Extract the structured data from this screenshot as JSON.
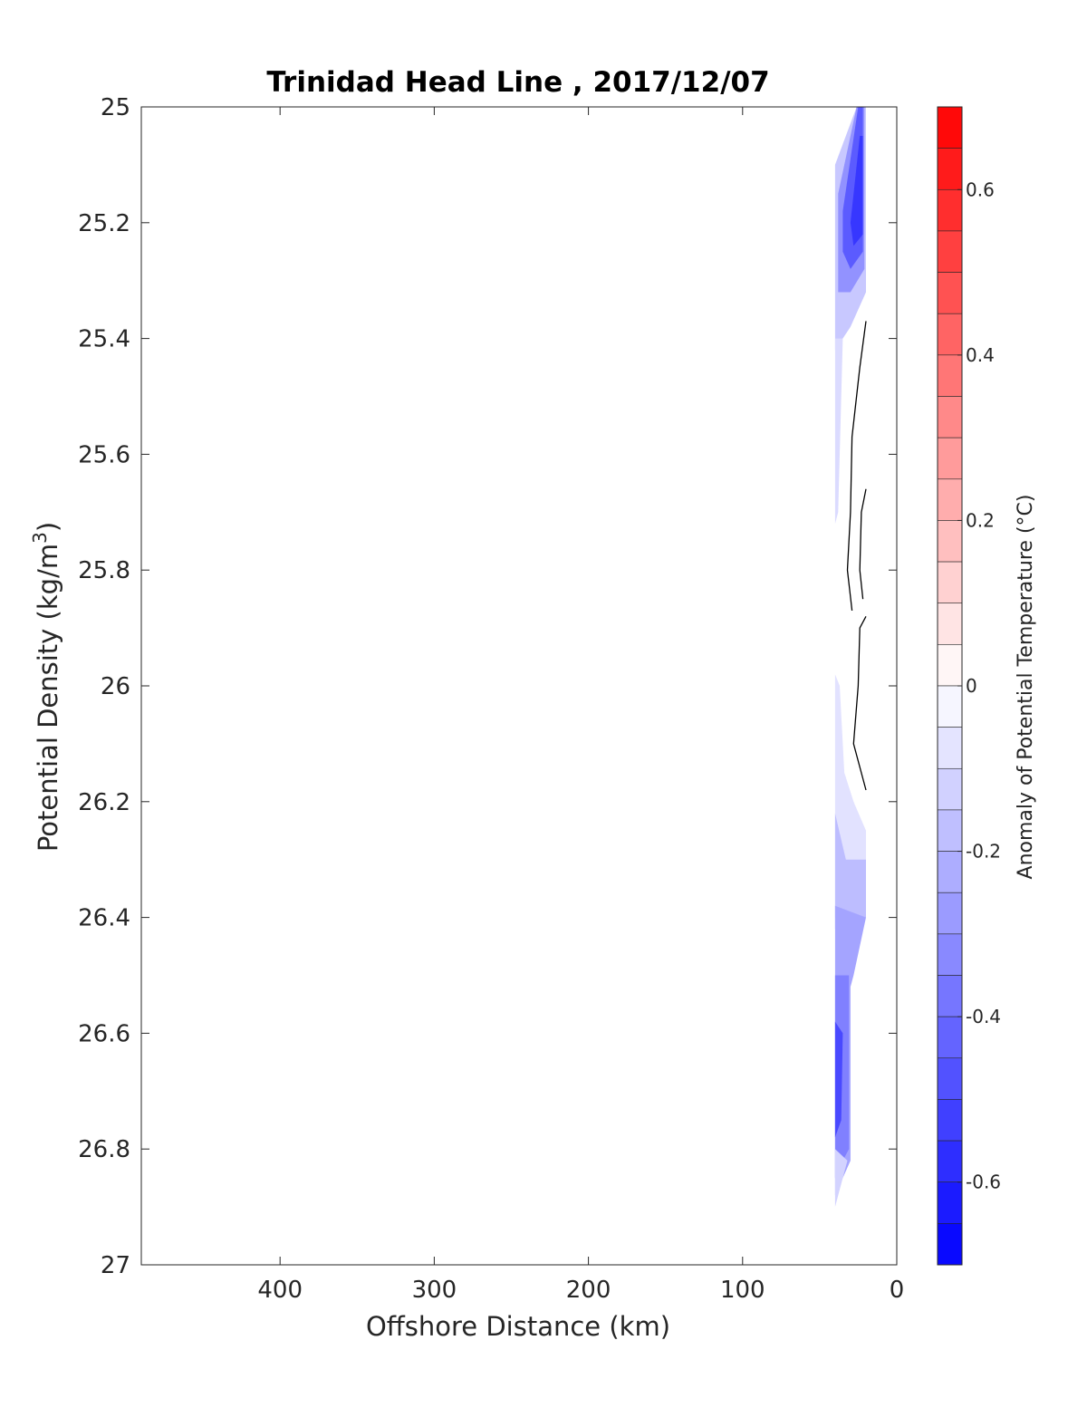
{
  "chart_data": {
    "type": "contour",
    "title": "Trinidad Head Line , 2017/12/07",
    "xlabel": "Offshore Distance (km)",
    "ylabel": "Potential Density (kg/m",
    "ylabel_superscript": "3",
    "ylabel_suffix": ")",
    "colorbar_label": "Anomaly of Potential Temperature (°C)",
    "x_axis": {
      "reversed": true,
      "xlim": [
        490,
        0
      ],
      "ticks": [
        400,
        300,
        200,
        100,
        0
      ],
      "tick_labels": [
        "400",
        "300",
        "200",
        "100",
        "0"
      ]
    },
    "y_axis": {
      "reversed": true,
      "ylim": [
        25,
        27
      ],
      "ticks": [
        25,
        25.2,
        25.4,
        25.6,
        25.8,
        26,
        26.2,
        26.4,
        26.6,
        26.8,
        27
      ],
      "tick_labels": [
        "25",
        "25.2",
        "25.4",
        "25.6",
        "25.8",
        "26",
        "26.2",
        "26.4",
        "26.6",
        "26.8",
        "27"
      ]
    },
    "colorbar": {
      "clim": [
        -0.7,
        0.7
      ],
      "step": 0.05,
      "ticks": [
        0.6,
        0.4,
        0.2,
        0,
        -0.2,
        -0.4,
        -0.6
      ],
      "tick_labels": [
        "0.6",
        "0.4",
        "0.2",
        "0",
        "-0.2",
        "-0.4",
        "-0.6"
      ],
      "color_min": "#0000ff",
      "color_mid": "#ffffff",
      "color_max": "#ff0000"
    },
    "regions": [
      {
        "anomaly": -0.15,
        "points": [
          [
            40,
            25.1
          ],
          [
            26,
            25.0
          ],
          [
            20,
            25.0
          ],
          [
            20,
            25.32
          ],
          [
            30,
            25.38
          ],
          [
            40,
            25.42
          ]
        ]
      },
      {
        "anomaly": -0.3,
        "points": [
          [
            38,
            25.15
          ],
          [
            26,
            25.0
          ],
          [
            21,
            25.0
          ],
          [
            21,
            25.28
          ],
          [
            30,
            25.32
          ],
          [
            38,
            25.32
          ]
        ]
      },
      {
        "anomaly": -0.45,
        "points": [
          [
            35,
            25.18
          ],
          [
            25,
            25.0
          ],
          [
            22,
            25.0
          ],
          [
            22,
            25.25
          ],
          [
            30,
            25.28
          ],
          [
            35,
            25.25
          ]
        ]
      },
      {
        "anomaly": -0.55,
        "points": [
          [
            30,
            25.2
          ],
          [
            24,
            25.05
          ],
          [
            22,
            25.05
          ],
          [
            22,
            25.22
          ],
          [
            28,
            25.24
          ]
        ]
      },
      {
        "anomaly": -0.1,
        "points": [
          [
            40,
            25.4
          ],
          [
            35,
            25.4
          ],
          [
            38,
            25.7
          ],
          [
            40,
            25.72
          ]
        ]
      },
      {
        "anomaly": -0.08,
        "points": [
          [
            40,
            25.98
          ],
          [
            37,
            26.0
          ],
          [
            34,
            26.15
          ],
          [
            28,
            26.2
          ],
          [
            20,
            26.25
          ],
          [
            20,
            26.4
          ],
          [
            40,
            26.4
          ]
        ]
      },
      {
        "anomaly": -0.18,
        "points": [
          [
            40,
            26.22
          ],
          [
            33,
            26.3
          ],
          [
            20,
            26.3
          ],
          [
            20,
            26.4
          ],
          [
            40,
            26.42
          ]
        ]
      },
      {
        "anomaly": -0.25,
        "points": [
          [
            40,
            26.38
          ],
          [
            20,
            26.4
          ],
          [
            28,
            26.5
          ],
          [
            30,
            26.52
          ],
          [
            30,
            26.82
          ],
          [
            40,
            26.88
          ]
        ]
      },
      {
        "anomaly": -0.35,
        "points": [
          [
            40,
            26.5
          ],
          [
            31,
            26.5
          ],
          [
            31,
            26.8
          ],
          [
            35,
            26.82
          ],
          [
            40,
            26.85
          ]
        ]
      },
      {
        "anomaly": -0.5,
        "points": [
          [
            40,
            26.58
          ],
          [
            35,
            26.6
          ],
          [
            36,
            26.75
          ],
          [
            40,
            26.78
          ]
        ]
      },
      {
        "anomaly": -0.12,
        "points": [
          [
            40,
            26.8
          ],
          [
            32,
            26.82
          ],
          [
            40,
            26.9
          ]
        ]
      }
    ],
    "zero_contours": [
      [
        [
          20,
          25.37
        ],
        [
          24,
          25.45
        ],
        [
          29,
          25.57
        ],
        [
          30,
          25.7
        ],
        [
          32,
          25.8
        ],
        [
          29,
          25.87
        ]
      ],
      [
        [
          20,
          25.66
        ],
        [
          23,
          25.7
        ],
        [
          24,
          25.8
        ],
        [
          22,
          25.85
        ]
      ],
      [
        [
          20,
          25.88
        ],
        [
          24,
          25.9
        ],
        [
          25,
          26.0
        ],
        [
          28,
          26.1
        ],
        [
          20,
          26.18
        ]
      ]
    ]
  }
}
